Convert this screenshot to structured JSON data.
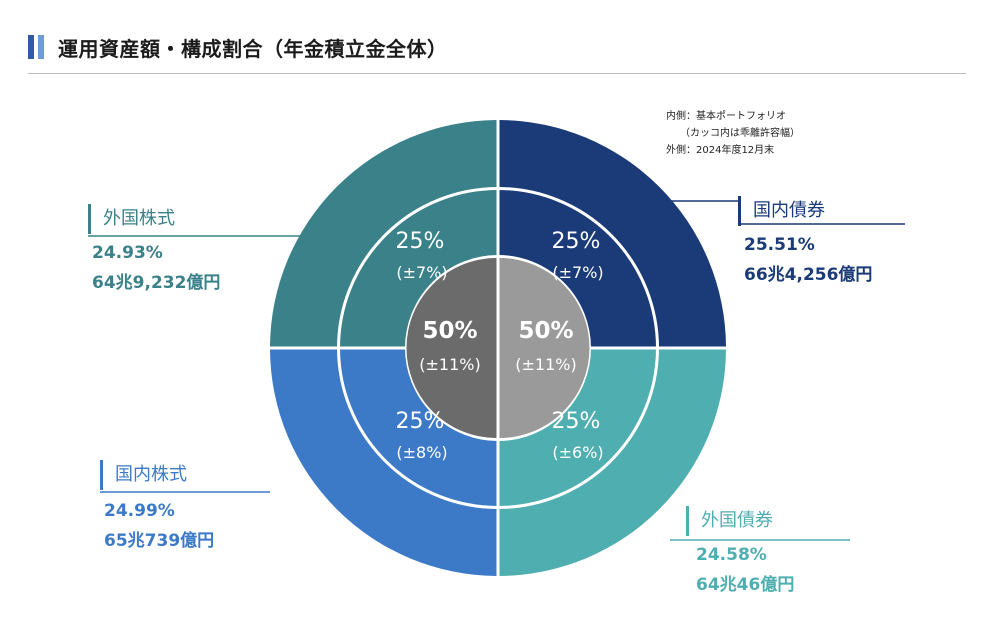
{
  "title": "運用資産額・構成割合（年金積立金全体）",
  "note": {
    "line1": "内側：基本ポートフォリオ",
    "line2": "（カッコ内は乖離許容幅）",
    "line3": "外側：2024年度12月末"
  },
  "colors": {
    "domestic_bond": "#1a3a78",
    "foreign_bond": "#4faeb0",
    "domestic_equity": "#3c7ac8",
    "foreign_equity": "#3a8189",
    "center_left": "#6b6b6b",
    "center_right": "#9a9a9a"
  },
  "chart_data": {
    "type": "pie",
    "outer": [
      {
        "name": "国内債券",
        "percent": 25.51,
        "amount": "66兆4,256億円"
      },
      {
        "name": "外国債券",
        "percent": 24.58,
        "amount": "64兆46億円"
      },
      {
        "name": "国内株式",
        "percent": 24.99,
        "amount": "65兆739億円"
      },
      {
        "name": "外国株式",
        "percent": 24.93,
        "amount": "64兆9,232億円"
      }
    ],
    "inner": [
      {
        "name": "国内債券",
        "value": "25%",
        "range": "(±7%)"
      },
      {
        "name": "外国債券",
        "value": "25%",
        "range": "(±6%)"
      },
      {
        "name": "国内株式",
        "value": "25%",
        "range": "(±8%)"
      },
      {
        "name": "外国株式",
        "value": "25%",
        "range": "(±7%)"
      }
    ],
    "center": [
      {
        "value": "50%",
        "range": "(±11%)"
      },
      {
        "value": "50%",
        "range": "(±11%)"
      }
    ]
  },
  "labels": {
    "domestic_bond": {
      "name": "国内債券",
      "pct": "25.51%",
      "amt": "66兆4,256億円"
    },
    "foreign_bond": {
      "name": "外国債券",
      "pct": "24.58%",
      "amt": "64兆46億円"
    },
    "domestic_equity": {
      "name": "国内株式",
      "pct": "24.99%",
      "amt": "65兆739億円"
    },
    "foreign_equity": {
      "name": "外国株式",
      "pct": "24.93%",
      "amt": "64兆9,232億円"
    }
  }
}
